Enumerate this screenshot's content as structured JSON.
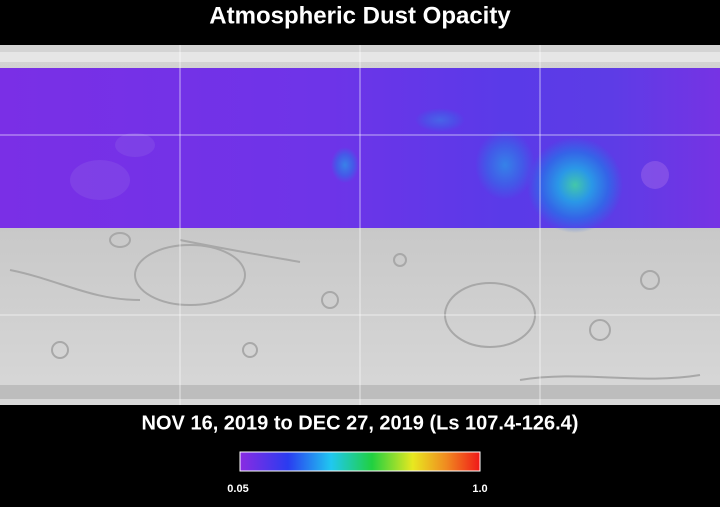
{
  "header": {
    "title": "Atmospheric Dust Opacity"
  },
  "caption": "NOV 16, 2019 to DEC 27, 2019 (Ls 107.4-126.4)",
  "colorbar": {
    "min_label": "0.05",
    "max_label": "1.0"
  }
}
